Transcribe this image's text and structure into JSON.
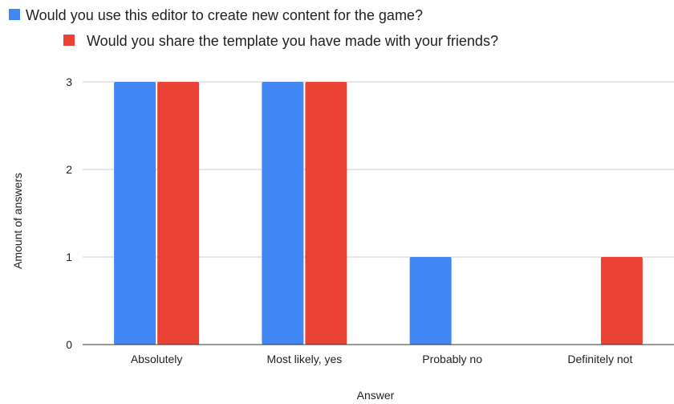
{
  "chart_data": {
    "type": "bar",
    "title": "",
    "xlabel": "Answer",
    "ylabel": "Amount of answers",
    "categories": [
      "Absolutely",
      "Most likely, yes",
      "Probably no",
      "Definitely not"
    ],
    "series": [
      {
        "name": "Would you use this editor to create new content for the game?",
        "color": "#4285f4",
        "values": [
          3,
          3,
          1,
          0
        ]
      },
      {
        "name": "Would you share the template you have made with your friends?",
        "color": "#ea4335",
        "values": [
          3,
          3,
          0,
          1
        ]
      }
    ],
    "ylim": [
      0,
      3
    ],
    "yticks": [
      "0",
      "1",
      "2",
      "3"
    ],
    "grid": true,
    "legend_position": "top"
  }
}
